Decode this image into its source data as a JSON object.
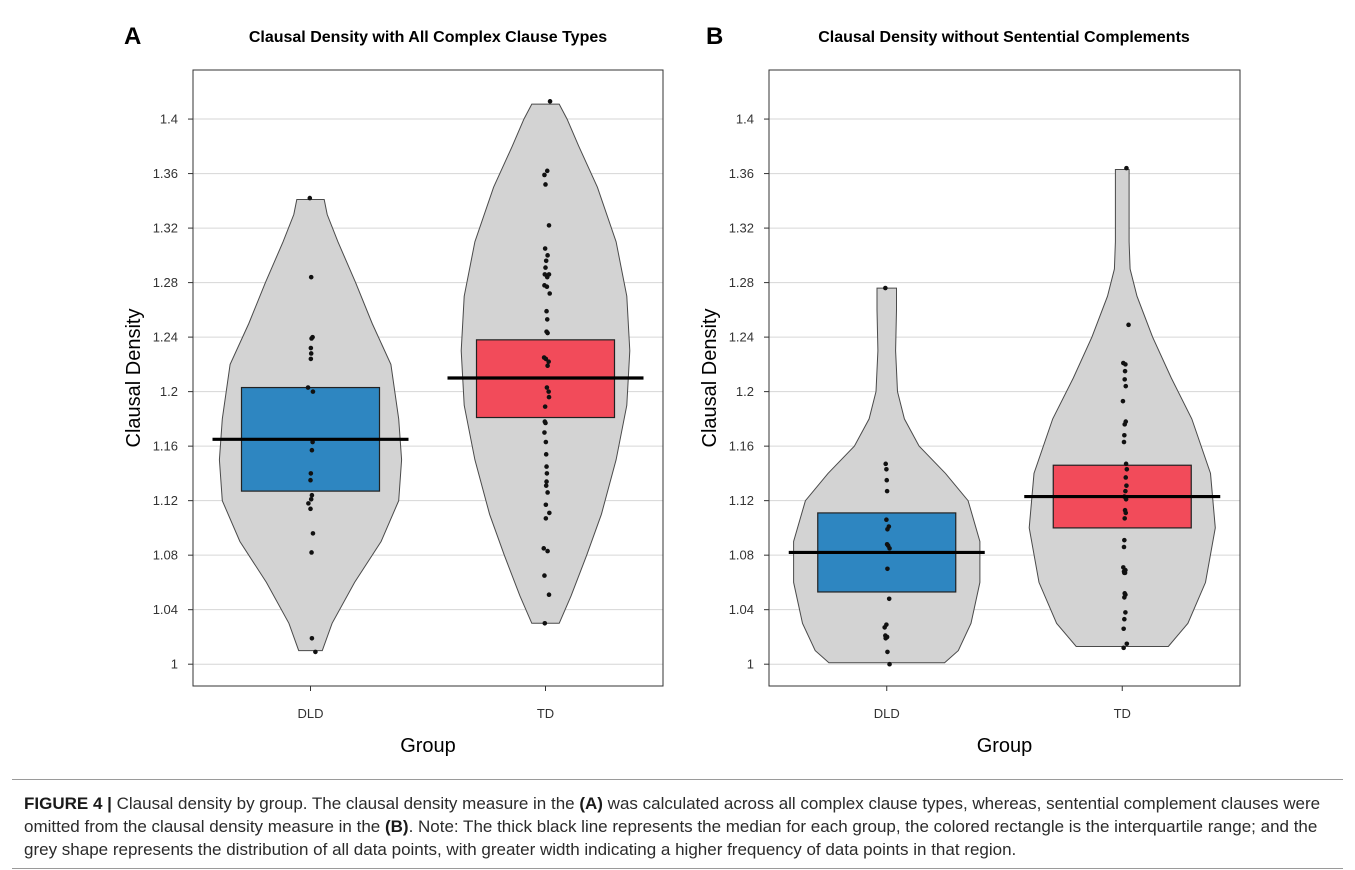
{
  "figure": {
    "caption": {
      "label": "FIGURE 4 |",
      "t1": " Clausal density by group. The clausal density measure in the ",
      "ref_a": "(A)",
      "t2": " was calculated across all complex clause types, whereas, sentential complement clauses were omitted from the clausal density measure in the ",
      "ref_b": "(B)",
      "t3": ". Note: The thick black line represents the median for each group, the colored rectangle is the interquartile range; and the grey shape represents the distribution of all data points, with greater width indicating a higher frequency of data points in that region."
    }
  },
  "chart_data": [
    {
      "type": "violin",
      "panel_label": "A",
      "title": "Clausal Density with All Complex Clause Types",
      "xlabel": "Group",
      "ylabel": "Clausal Density",
      "ylim": [
        0.984,
        1.436
      ],
      "yticks": [
        1,
        1.04,
        1.08,
        1.12,
        1.16,
        1.2,
        1.24,
        1.28,
        1.32,
        1.36,
        1.4
      ],
      "grid": true,
      "categories": [
        "DLD",
        "TD"
      ],
      "groups": [
        {
          "name": "DLD",
          "color": "#2e86c1",
          "median": 1.165,
          "q1": 1.127,
          "q3": 1.203,
          "violin": [
            [
              1.01,
              0.12
            ],
            [
              1.03,
              0.22
            ],
            [
              1.06,
              0.45
            ],
            [
              1.09,
              0.72
            ],
            [
              1.12,
              0.9
            ],
            [
              1.15,
              0.93
            ],
            [
              1.18,
              0.9
            ],
            [
              1.22,
              0.82
            ],
            [
              1.25,
              0.63
            ],
            [
              1.28,
              0.46
            ],
            [
              1.31,
              0.28
            ],
            [
              1.33,
              0.17
            ],
            [
              1.341,
              0.14
            ]
          ],
          "points": [
            [
              -0.02,
              1.342
            ],
            [
              0.02,
              1.284
            ],
            [
              0.06,
              1.24
            ],
            [
              0.03,
              1.239
            ],
            [
              0.01,
              1.232
            ],
            [
              0.02,
              1.228
            ],
            [
              0.01,
              1.224
            ],
            [
              -0.07,
              1.203
            ],
            [
              0.07,
              1.2
            ],
            [
              0.06,
              1.163
            ],
            [
              0.04,
              1.157
            ],
            [
              0.01,
              1.14
            ],
            [
              0.0,
              1.135
            ],
            [
              0.04,
              1.124
            ],
            [
              0.02,
              1.121
            ],
            [
              -0.06,
              1.118
            ],
            [
              0.0,
              1.114
            ],
            [
              0.07,
              1.096
            ],
            [
              0.03,
              1.082
            ],
            [
              0.04,
              1.019
            ],
            [
              0.14,
              1.009
            ]
          ]
        },
        {
          "name": "TD",
          "color": "#f24b5a",
          "median": 1.21,
          "q1": 1.181,
          "q3": 1.238,
          "violin": [
            [
              1.03,
              0.14
            ],
            [
              1.05,
              0.26
            ],
            [
              1.08,
              0.42
            ],
            [
              1.11,
              0.57
            ],
            [
              1.15,
              0.72
            ],
            [
              1.19,
              0.83
            ],
            [
              1.23,
              0.86
            ],
            [
              1.27,
              0.83
            ],
            [
              1.31,
              0.72
            ],
            [
              1.35,
              0.53
            ],
            [
              1.38,
              0.34
            ],
            [
              1.4,
              0.22
            ],
            [
              1.411,
              0.14
            ]
          ],
          "points": [
            [
              0.13,
              1.413
            ],
            [
              0.05,
              1.362
            ],
            [
              -0.03,
              1.359
            ],
            [
              0.0,
              1.352
            ],
            [
              0.1,
              1.322
            ],
            [
              -0.01,
              1.305
            ],
            [
              0.06,
              1.3
            ],
            [
              0.02,
              1.296
            ],
            [
              0.0,
              1.291
            ],
            [
              -0.02,
              1.286
            ],
            [
              0.05,
              1.284
            ],
            [
              0.1,
              1.286
            ],
            [
              -0.03,
              1.278
            ],
            [
              0.04,
              1.277
            ],
            [
              0.12,
              1.272
            ],
            [
              0.03,
              1.259
            ],
            [
              0.05,
              1.253
            ],
            [
              0.03,
              1.244
            ],
            [
              0.06,
              1.243
            ],
            [
              -0.04,
              1.225
            ],
            [
              0.01,
              1.224
            ],
            [
              0.09,
              1.222
            ],
            [
              0.06,
              1.219
            ],
            [
              0.04,
              1.203
            ],
            [
              0.09,
              1.2
            ],
            [
              0.1,
              1.196
            ],
            [
              -0.01,
              1.189
            ],
            [
              -0.02,
              1.178
            ],
            [
              0.0,
              1.177
            ],
            [
              -0.03,
              1.17
            ],
            [
              0.01,
              1.163
            ],
            [
              0.02,
              1.154
            ],
            [
              0.03,
              1.145
            ],
            [
              0.04,
              1.14
            ],
            [
              0.03,
              1.134
            ],
            [
              0.02,
              1.131
            ],
            [
              0.06,
              1.126
            ],
            [
              0.01,
              1.117
            ],
            [
              0.11,
              1.111
            ],
            [
              0.01,
              1.107
            ],
            [
              -0.05,
              1.085
            ],
            [
              0.06,
              1.083
            ],
            [
              -0.03,
              1.065
            ],
            [
              0.1,
              1.051
            ],
            [
              -0.02,
              1.03
            ]
          ]
        }
      ]
    },
    {
      "type": "violin",
      "panel_label": "B",
      "title": "Clausal Density without Sentential Complements",
      "xlabel": "Group",
      "ylabel": "Clausal Density",
      "ylim": [
        0.984,
        1.436
      ],
      "yticks": [
        1,
        1.04,
        1.08,
        1.12,
        1.16,
        1.2,
        1.24,
        1.28,
        1.32,
        1.36,
        1.4
      ],
      "grid": true,
      "categories": [
        "DLD",
        "TD"
      ],
      "groups": [
        {
          "name": "DLD",
          "color": "#2e86c1",
          "median": 1.082,
          "q1": 1.053,
          "q3": 1.111,
          "violin": [
            [
              1.001,
              0.59
            ],
            [
              1.01,
              0.73
            ],
            [
              1.03,
              0.86
            ],
            [
              1.06,
              0.95
            ],
            [
              1.09,
              0.95
            ],
            [
              1.12,
              0.83
            ],
            [
              1.14,
              0.6
            ],
            [
              1.16,
              0.33
            ],
            [
              1.18,
              0.18
            ],
            [
              1.2,
              0.11
            ],
            [
              1.23,
              0.09
            ],
            [
              1.26,
              0.1
            ],
            [
              1.276,
              0.1
            ]
          ],
          "points": [
            [
              -0.04,
              1.276
            ],
            [
              -0.03,
              1.147
            ],
            [
              -0.01,
              1.143
            ],
            [
              0.0,
              1.135
            ],
            [
              0.01,
              1.127
            ],
            [
              -0.01,
              1.106
            ],
            [
              0.06,
              1.101
            ],
            [
              0.02,
              1.099
            ],
            [
              0.01,
              1.088
            ],
            [
              0.04,
              1.087
            ],
            [
              0.08,
              1.085
            ],
            [
              0.02,
              1.07
            ],
            [
              0.07,
              1.048
            ],
            [
              -0.06,
              1.027
            ],
            [
              -0.01,
              1.029
            ],
            [
              -0.04,
              1.021
            ],
            [
              0.01,
              1.02
            ],
            [
              -0.03,
              1.019
            ],
            [
              0.02,
              1.009
            ],
            [
              0.08,
              1.0
            ]
          ]
        },
        {
          "name": "TD",
          "color": "#f24b5a",
          "median": 1.123,
          "q1": 1.1,
          "q3": 1.146,
          "violin": [
            [
              1.013,
              0.47
            ],
            [
              1.03,
              0.67
            ],
            [
              1.06,
              0.85
            ],
            [
              1.1,
              0.95
            ],
            [
              1.14,
              0.9
            ],
            [
              1.18,
              0.71
            ],
            [
              1.21,
              0.5
            ],
            [
              1.24,
              0.31
            ],
            [
              1.27,
              0.15
            ],
            [
              1.29,
              0.08
            ],
            [
              1.31,
              0.07
            ],
            [
              1.34,
              0.07
            ],
            [
              1.363,
              0.07
            ]
          ],
          "points": [
            [
              0.12,
              1.364
            ],
            [
              0.18,
              1.249
            ],
            [
              0.03,
              1.221
            ],
            [
              0.09,
              1.22
            ],
            [
              0.08,
              1.215
            ],
            [
              0.07,
              1.209
            ],
            [
              0.1,
              1.204
            ],
            [
              0.02,
              1.193
            ],
            [
              0.1,
              1.178
            ],
            [
              0.07,
              1.176
            ],
            [
              0.06,
              1.168
            ],
            [
              0.05,
              1.163
            ],
            [
              0.11,
              1.147
            ],
            [
              0.13,
              1.143
            ],
            [
              0.1,
              1.137
            ],
            [
              0.12,
              1.131
            ],
            [
              0.09,
              1.127
            ],
            [
              0.06,
              1.123
            ],
            [
              0.11,
              1.121
            ],
            [
              0.08,
              1.113
            ],
            [
              0.1,
              1.111
            ],
            [
              0.07,
              1.107
            ],
            [
              0.06,
              1.091
            ],
            [
              0.05,
              1.086
            ],
            [
              0.03,
              1.071
            ],
            [
              0.09,
              1.069
            ],
            [
              0.05,
              1.068
            ],
            [
              0.06,
              1.067
            ],
            [
              0.08,
              1.067
            ],
            [
              0.07,
              1.052
            ],
            [
              0.09,
              1.051
            ],
            [
              0.06,
              1.049
            ],
            [
              0.09,
              1.038
            ],
            [
              0.06,
              1.033
            ],
            [
              0.04,
              1.026
            ],
            [
              0.13,
              1.015
            ],
            [
              0.04,
              1.012
            ]
          ]
        }
      ]
    }
  ]
}
